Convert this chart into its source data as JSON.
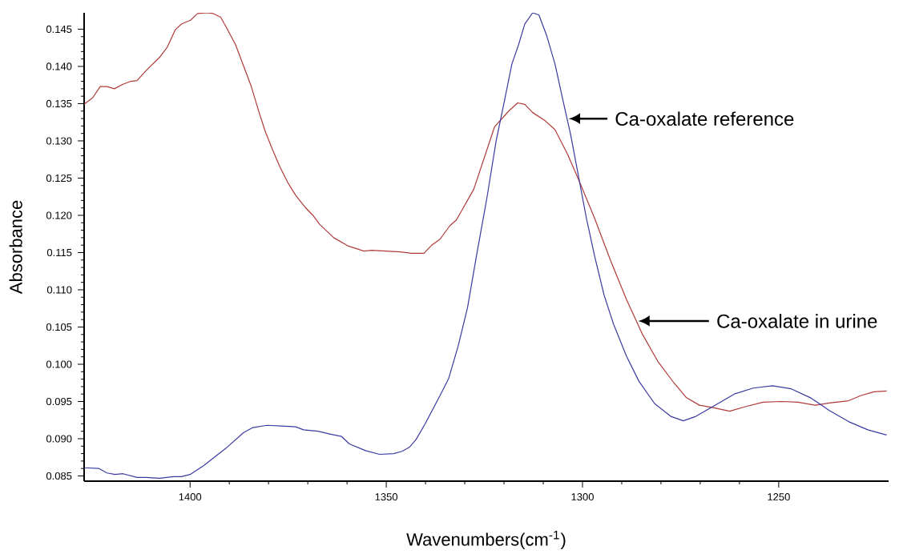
{
  "chart_data": {
    "type": "line",
    "xlabel": "Wavenumbers(cm$^{-1}$)",
    "ylabel": "Absorbance",
    "xlim": [
      1427,
      1222
    ],
    "ylim": [
      0.0843,
      0.1472
    ],
    "xticks": [
      1400,
      1350,
      1300,
      1250
    ],
    "yticks": [
      {
        "value": 0.085,
        "label": "0.085"
      },
      {
        "value": 0.09,
        "label": "0.090"
      },
      {
        "value": 0.095,
        "label": "0.095"
      },
      {
        "value": 0.1,
        "label": "0.100"
      },
      {
        "value": 0.105,
        "label": "0.105"
      },
      {
        "value": 0.11,
        "label": "0.110"
      },
      {
        "value": 0.115,
        "label": "0.115"
      },
      {
        "value": 0.12,
        "label": "0.120"
      },
      {
        "value": 0.125,
        "label": "0.125"
      },
      {
        "value": 0.13,
        "label": "0.130"
      },
      {
        "value": 0.135,
        "label": "0.135"
      },
      {
        "value": 0.14,
        "label": "0.140"
      },
      {
        "value": 0.145,
        "label": "0.145"
      }
    ],
    "series": [
      {
        "color": "#b03a3a",
        "x": [
          1427.0,
          1424.8,
          1422.9,
          1421.2,
          1419.3,
          1417.1,
          1415.1,
          1413.5,
          1411.1,
          1407.8,
          1405.8,
          1403.8,
          1402.2,
          1399.9,
          1398.1,
          1395.7,
          1394.1,
          1392.2,
          1390.5,
          1388.4,
          1386.4,
          1384.4,
          1382.4,
          1380.8,
          1378.9,
          1377.1,
          1375.1,
          1373.1,
          1370.7,
          1368.7,
          1367.0,
          1363.4,
          1359.8,
          1355.7,
          1353.7,
          1350.1,
          1346.4,
          1343.6,
          1340.4,
          1338.4,
          1336.3,
          1333.8,
          1332.1,
          1327.7,
          1322.4,
          1318.8,
          1316.5,
          1314.7,
          1312.7,
          1309.5,
          1307.0,
          1303.8,
          1301.0,
          1296.9,
          1292.9,
          1288.8,
          1284.8,
          1280.7,
          1276.7,
          1273.5,
          1270.2,
          1267.0,
          1262.5,
          1258.5,
          1254.0,
          1249.2,
          1245.1,
          1240.7,
          1237.1,
          1232.2,
          1229.0,
          1225.7,
          1222.5
        ],
        "values": [
          0.1349,
          0.1358,
          0.1373,
          0.1373,
          0.137,
          0.1376,
          0.138,
          0.1381,
          0.1395,
          0.1412,
          0.1426,
          0.1449,
          0.1457,
          0.1462,
          0.1471,
          0.1472,
          0.1471,
          0.1466,
          0.145,
          0.1429,
          0.1401,
          0.1373,
          0.1338,
          0.1312,
          0.1287,
          0.1265,
          0.1244,
          0.1227,
          0.1211,
          0.12,
          0.1188,
          0.117,
          0.1159,
          0.1152,
          0.1153,
          0.1152,
          0.1151,
          0.1149,
          0.1149,
          0.116,
          0.1168,
          0.1186,
          0.1194,
          0.1235,
          0.1319,
          0.134,
          0.1351,
          0.1349,
          0.1338,
          0.1327,
          0.1315,
          0.1282,
          0.1248,
          0.1196,
          0.114,
          0.1087,
          0.1041,
          0.1003,
          0.0975,
          0.0955,
          0.0945,
          0.0942,
          0.0937,
          0.0943,
          0.0949,
          0.095,
          0.0949,
          0.0945,
          0.0948,
          0.0951,
          0.0958,
          0.0963,
          0.0964
        ]
      },
      {
        "color": "#3a3aa0",
        "x": [
          1427.0,
          1423.2,
          1421.2,
          1419.1,
          1417.1,
          1413.5,
          1411.1,
          1407.8,
          1404.2,
          1402.2,
          1400.0,
          1396.5,
          1390.9,
          1386.4,
          1384.0,
          1380.4,
          1376.7,
          1373.1,
          1371.1,
          1367.4,
          1364.2,
          1361.4,
          1359.4,
          1355.3,
          1351.7,
          1348.1,
          1346.0,
          1344.0,
          1342.4,
          1340.0,
          1336.3,
          1334.1,
          1331.7,
          1329.3,
          1326.9,
          1324.4,
          1322.0,
          1320.0,
          1318.0,
          1316.3,
          1314.7,
          1312.7,
          1311.1,
          1309.1,
          1307.0,
          1305.0,
          1303.0,
          1301.0,
          1299.0,
          1296.9,
          1294.5,
          1292.1,
          1288.8,
          1285.6,
          1281.6,
          1277.5,
          1274.3,
          1271.1,
          1266.2,
          1261.3,
          1256.5,
          1251.6,
          1246.8,
          1241.9,
          1237.1,
          1232.2,
          1227.3,
          1222.5
        ],
        "values": [
          0.0861,
          0.086,
          0.0854,
          0.0852,
          0.0853,
          0.0848,
          0.0848,
          0.0847,
          0.0849,
          0.0849,
          0.0852,
          0.0864,
          0.0887,
          0.0908,
          0.0915,
          0.0918,
          0.0917,
          0.0916,
          0.0912,
          0.091,
          0.0906,
          0.0903,
          0.0893,
          0.0884,
          0.0879,
          0.088,
          0.0883,
          0.0889,
          0.0899,
          0.0921,
          0.0958,
          0.0981,
          0.1024,
          0.1076,
          0.1149,
          0.1222,
          0.13,
          0.1351,
          0.1403,
          0.1429,
          0.1457,
          0.1472,
          0.1469,
          0.1441,
          0.1403,
          0.1355,
          0.1308,
          0.1252,
          0.1196,
          0.1145,
          0.1093,
          0.1054,
          0.1011,
          0.0977,
          0.0947,
          0.093,
          0.0924,
          0.093,
          0.0945,
          0.096,
          0.0968,
          0.0971,
          0.0967,
          0.0955,
          0.0938,
          0.0923,
          0.0912,
          0.0905
        ]
      }
    ],
    "annotations": [
      "Ca-oxalate reference",
      "Ca-oxalate in urine"
    ]
  }
}
